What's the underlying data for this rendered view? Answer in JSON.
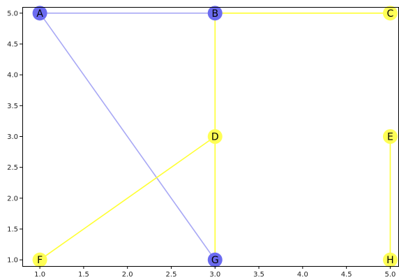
{
  "graph": {
    "colors": {
      "blue_node": "#6b6bf0",
      "yellow_node": "#ffff55",
      "blue_edge": "#a8a8f5",
      "yellow_edge": "#ffff33",
      "axis": "#000000"
    },
    "axes": {
      "xlim": [
        0.8,
        5.1
      ],
      "ylim": [
        0.9,
        5.1
      ],
      "xticks": [
        "1.0",
        "1.5",
        "2.0",
        "2.5",
        "3.0",
        "3.5",
        "4.0",
        "4.5",
        "5.0"
      ],
      "yticks": [
        "1.0",
        "1.5",
        "2.0",
        "2.5",
        "3.0",
        "3.5",
        "4.0",
        "4.5",
        "5.0"
      ]
    },
    "nodes": [
      {
        "id": "A",
        "label": "A",
        "x": 1.0,
        "y": 5.0,
        "color": "blue"
      },
      {
        "id": "B",
        "label": "B",
        "x": 3.0,
        "y": 5.0,
        "color": "blue"
      },
      {
        "id": "C",
        "label": "C",
        "x": 5.0,
        "y": 5.0,
        "color": "yellow"
      },
      {
        "id": "D",
        "label": "D",
        "x": 3.0,
        "y": 3.0,
        "color": "yellow"
      },
      {
        "id": "E",
        "label": "E",
        "x": 5.0,
        "y": 3.0,
        "color": "yellow"
      },
      {
        "id": "F",
        "label": "F",
        "x": 1.0,
        "y": 1.0,
        "color": "yellow"
      },
      {
        "id": "G",
        "label": "G",
        "x": 3.0,
        "y": 1.0,
        "color": "blue"
      },
      {
        "id": "H",
        "label": "H",
        "x": 5.0,
        "y": 1.0,
        "color": "yellow"
      }
    ],
    "edges": [
      {
        "from": "A",
        "to": "B",
        "color": "blue"
      },
      {
        "from": "A",
        "to": "G",
        "color": "blue"
      },
      {
        "from": "B",
        "to": "C",
        "color": "yellow"
      },
      {
        "from": "B",
        "to": "D",
        "color": "yellow"
      },
      {
        "from": "D",
        "to": "G",
        "color": "yellow"
      },
      {
        "from": "D",
        "to": "F",
        "color": "yellow"
      },
      {
        "from": "E",
        "to": "H",
        "color": "yellow"
      }
    ]
  }
}
